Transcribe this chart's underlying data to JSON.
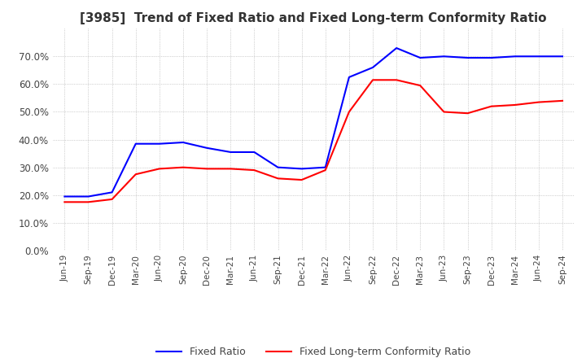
{
  "title": "[3985]  Trend of Fixed Ratio and Fixed Long-term Conformity Ratio",
  "x_labels": [
    "Jun-19",
    "Sep-19",
    "Dec-19",
    "Mar-20",
    "Jun-20",
    "Sep-20",
    "Dec-20",
    "Mar-21",
    "Jun-21",
    "Sep-21",
    "Dec-21",
    "Mar-22",
    "Jun-22",
    "Sep-22",
    "Dec-22",
    "Mar-23",
    "Jun-23",
    "Sep-23",
    "Dec-23",
    "Mar-24",
    "Jun-24",
    "Sep-24"
  ],
  "fixed_ratio": [
    0.195,
    0.195,
    0.21,
    0.385,
    0.385,
    0.39,
    0.37,
    0.355,
    0.355,
    0.3,
    0.295,
    0.3,
    0.625,
    0.66,
    0.73,
    0.695,
    0.7,
    0.695,
    0.695,
    0.7,
    0.7,
    0.7
  ],
  "fixed_lt_ratio": [
    0.175,
    0.175,
    0.185,
    0.275,
    0.295,
    0.3,
    0.295,
    0.295,
    0.29,
    0.26,
    0.255,
    0.29,
    0.5,
    0.615,
    0.615,
    0.595,
    0.5,
    0.495,
    0.52,
    0.525,
    0.535,
    0.54
  ],
  "fixed_ratio_color": "#0000FF",
  "fixed_lt_ratio_color": "#FF0000",
  "ylim": [
    0.0,
    0.8
  ],
  "yticks": [
    0.0,
    0.1,
    0.2,
    0.3,
    0.4,
    0.5,
    0.6,
    0.7
  ],
  "background_color": "#FFFFFF",
  "grid_color": "#AAAAAA",
  "title_fontsize": 11,
  "legend_fixed": "Fixed Ratio",
  "legend_fixed_lt": "Fixed Long-term Conformity Ratio"
}
